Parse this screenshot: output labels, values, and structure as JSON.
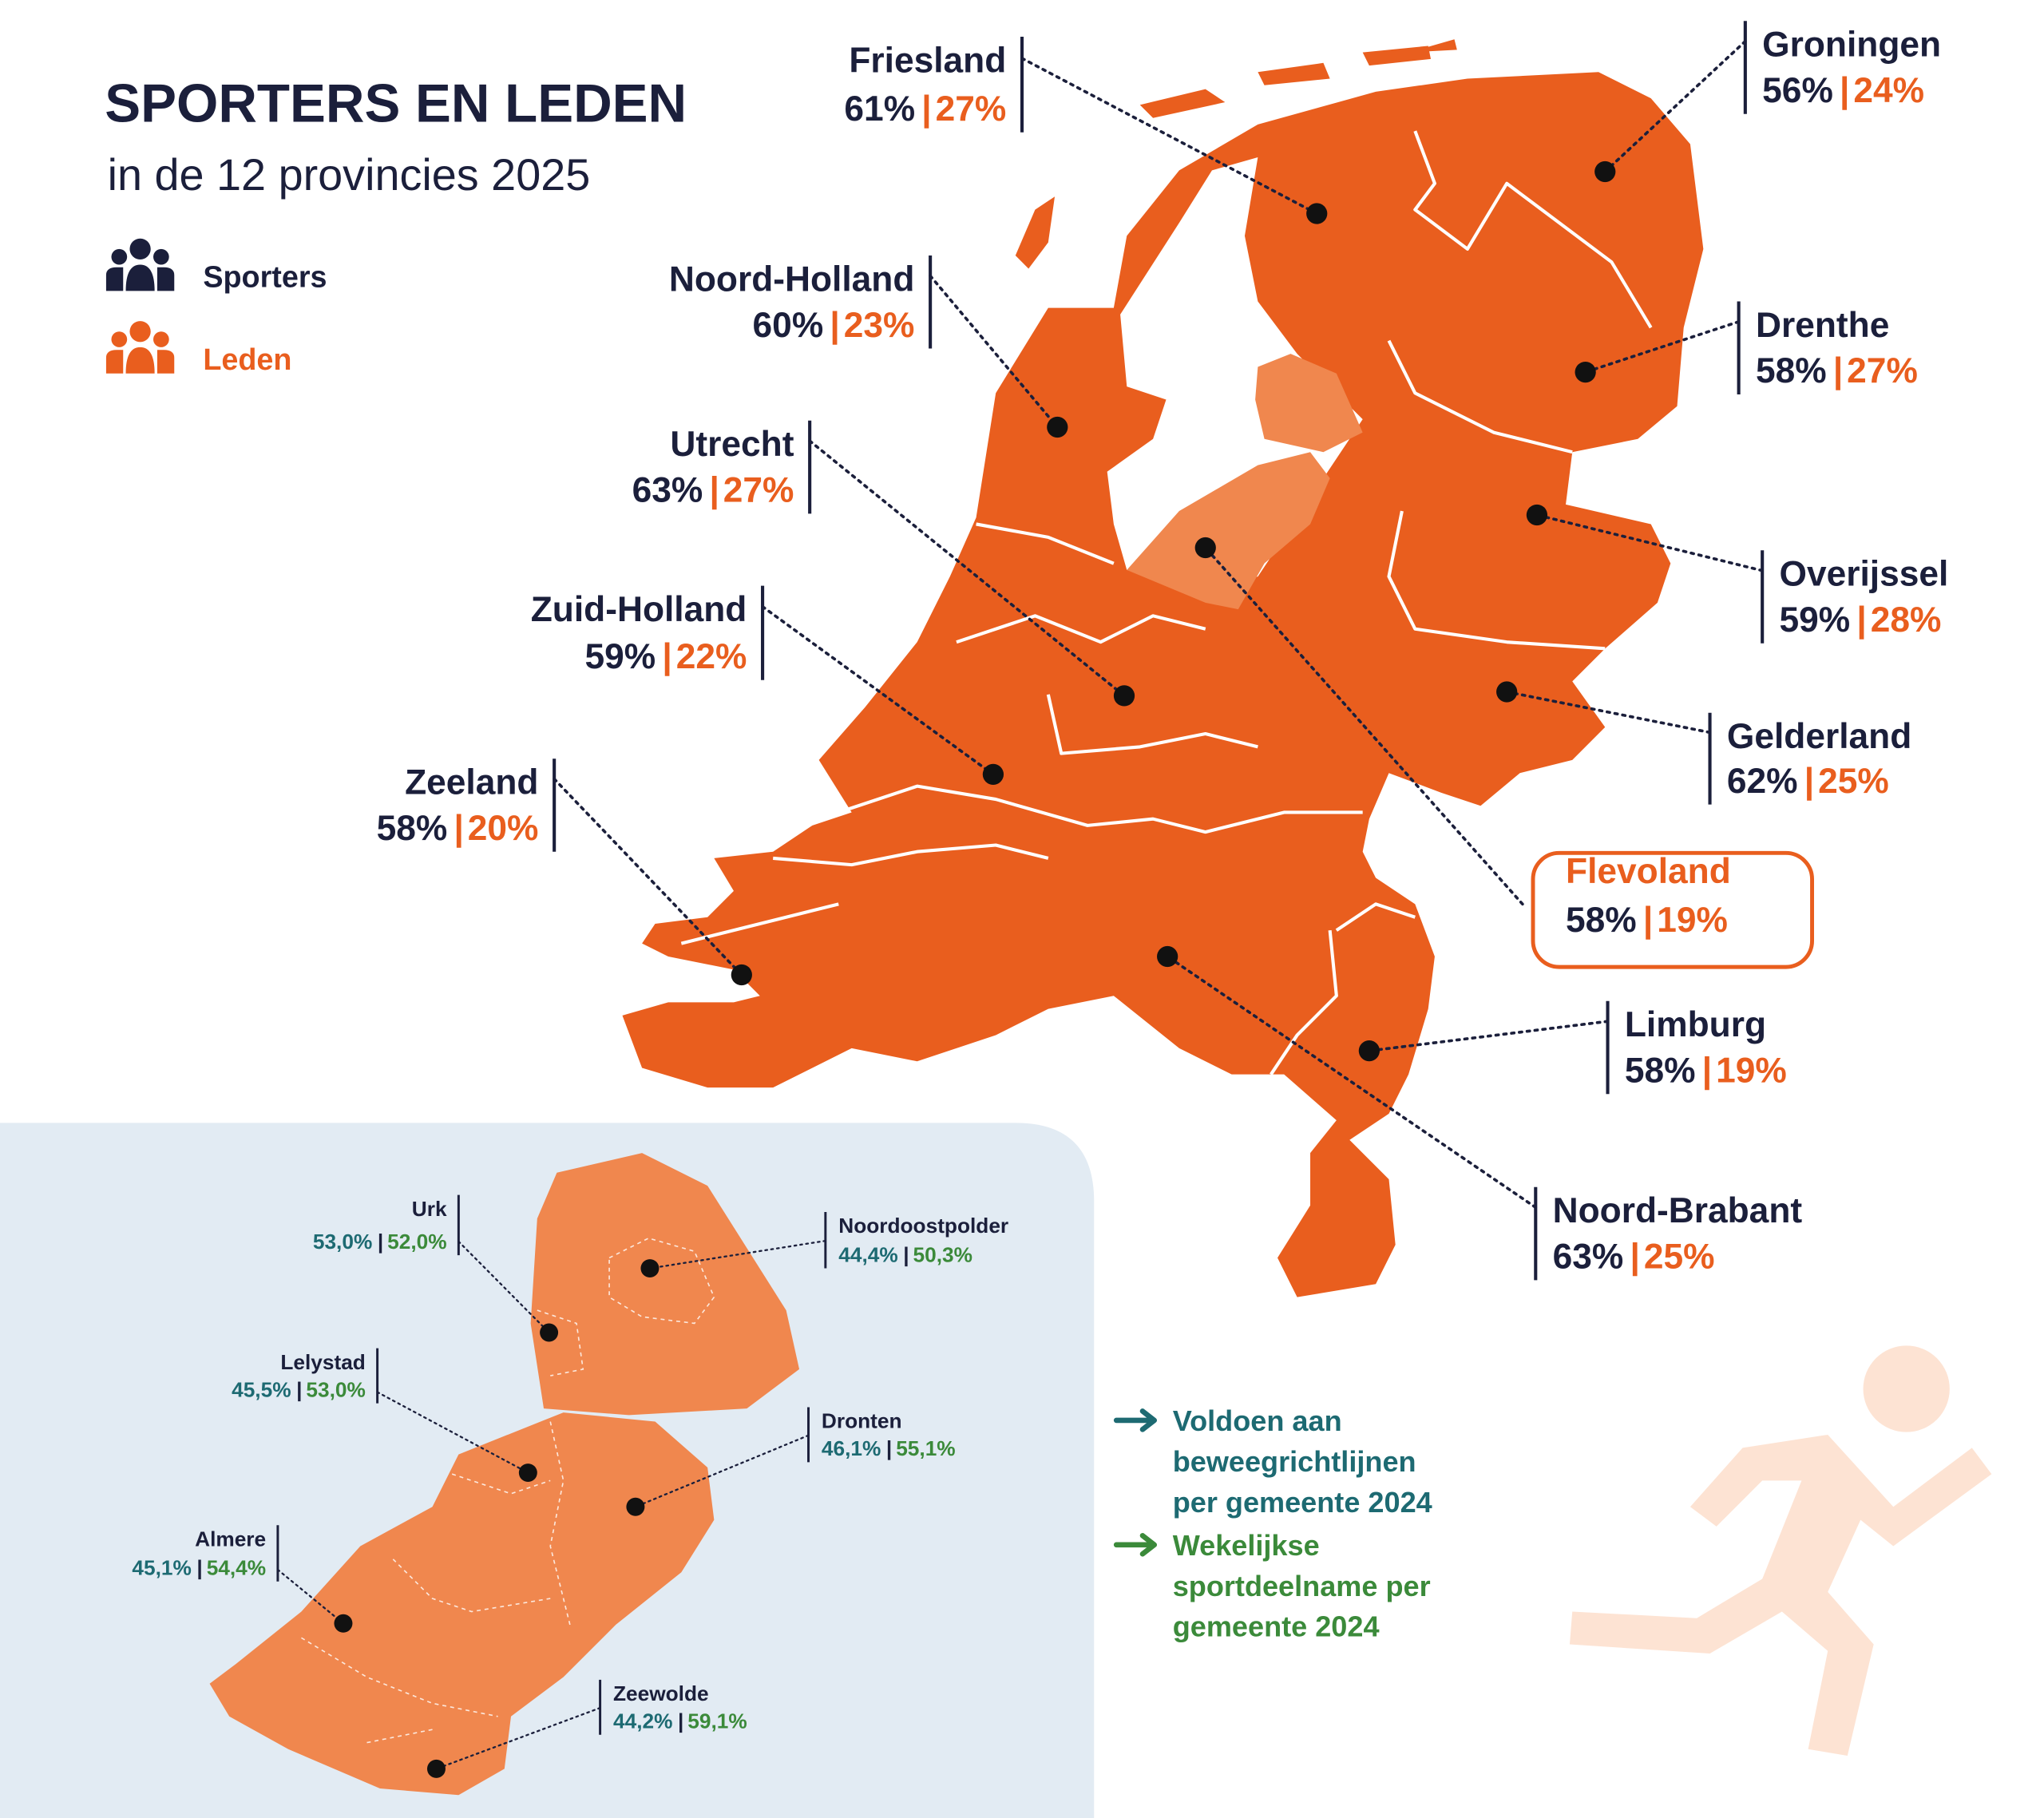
{
  "header": {
    "title": "SPORTERS EN LEDEN",
    "subtitle": "in de 12 provincies 2025"
  },
  "legend": [
    {
      "label": "Sporters"
    },
    {
      "label": "Leden"
    }
  ],
  "provinces": [
    {
      "name": "Friesland",
      "sporters": "61%",
      "leden": "27%"
    },
    {
      "name": "Groningen",
      "sporters": "56%",
      "leden": "24%"
    },
    {
      "name": "Noord-Holland",
      "sporters": "60%",
      "leden": "23%"
    },
    {
      "name": "Drenthe",
      "sporters": "58%",
      "leden": "27%"
    },
    {
      "name": "Utrecht",
      "sporters": "63%",
      "leden": "27%"
    },
    {
      "name": "Overijssel",
      "sporters": "59%",
      "leden": "28%"
    },
    {
      "name": "Zuid-Holland",
      "sporters": "59%",
      "leden": "22%"
    },
    {
      "name": "Gelderland",
      "sporters": "62%",
      "leden": "25%"
    },
    {
      "name": "Zeeland",
      "sporters": "58%",
      "leden": "20%"
    },
    {
      "name": "Flevoland",
      "sporters": "58%",
      "leden": "19%"
    },
    {
      "name": "Limburg",
      "sporters": "58%",
      "leden": "19%"
    },
    {
      "name": "Noord-Brabant",
      "sporters": "63%",
      "leden": "25%"
    }
  ],
  "inset": {
    "municipalities": [
      {
        "name": "Urk",
        "beweeg": "53,0%",
        "sport": "52,0%"
      },
      {
        "name": "Noordoostpolder",
        "beweeg": "44,4%",
        "sport": "50,3%"
      },
      {
        "name": "Lelystad",
        "beweeg": "45,5%",
        "sport": "53,0%"
      },
      {
        "name": "Dronten",
        "beweeg": "46,1%",
        "sport": "55,1%"
      },
      {
        "name": "Almere",
        "beweeg": "45,1%",
        "sport": "54,4%"
      },
      {
        "name": "Zeewolde",
        "beweeg": "44,2%",
        "sport": "59,1%"
      }
    ],
    "legend": [
      {
        "lines": [
          "Voldoen aan",
          "beweegrichtlijnen",
          "per gemeente 2024"
        ]
      },
      {
        "lines": [
          "Wekelijkse",
          "sportdeelname per",
          "gemeente 2024"
        ]
      }
    ]
  }
}
